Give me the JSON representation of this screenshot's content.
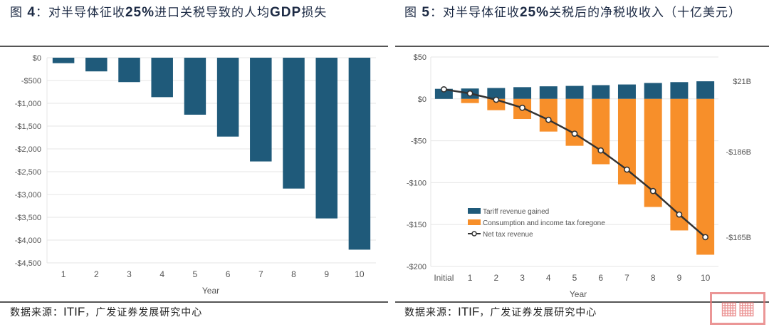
{
  "figure4": {
    "title_prefix": "图 ",
    "title_num": "4",
    "title_text": "：对半导体征收",
    "title_pct": "25%",
    "title_text2": "进口关税导致的人均",
    "title_gdp": "GDP",
    "title_text3": "损失",
    "source_label": "数据来源：",
    "source_en": "ITIF",
    "source_rest": "，广发证券发展研究中心"
  },
  "figure5": {
    "title_prefix": "图 ",
    "title_num": "5",
    "title_text": "：对半导体征收",
    "title_pct": "25%",
    "title_text2": "关税后的净税收收入（十亿美元）",
    "source_label": "数据来源：",
    "source_en": "ITIF",
    "source_rest": "，广发证券发展研究中心"
  },
  "colors": {
    "blue": "#1f5a7a",
    "orange": "#f78f2a",
    "line": "#333333",
    "grid": "#e6e6e6"
  },
  "watermark": "",
  "chart_data": [
    {
      "type": "bar",
      "title": "",
      "xlabel": "Year",
      "ylabel": "",
      "categories": [
        "1",
        "2",
        "3",
        "4",
        "5",
        "6",
        "7",
        "8",
        "9",
        "10"
      ],
      "values": [
        -120,
        -300,
        -535,
        -865,
        -1250,
        -1730,
        -2275,
        -2870,
        -3525,
        -4210
      ],
      "ylim": [
        -4500,
        0
      ],
      "yticks": [
        0,
        -500,
        -1000,
        -1500,
        -2000,
        -2500,
        -3000,
        -3500,
        -4000,
        -4500
      ],
      "ytick_labels": [
        "$0",
        "-$500",
        "-$1,000",
        "-$1,500",
        "-$2,000",
        "-$2,500",
        "-$3,000",
        "-$3,500",
        "-$4,000",
        "-$4,500"
      ],
      "grid": true
    },
    {
      "type": "bar",
      "title": "",
      "xlabel": "Year",
      "ylabel": "",
      "categories": [
        "Initial",
        "1",
        "2",
        "3",
        "4",
        "5",
        "6",
        "7",
        "8",
        "9",
        "10"
      ],
      "series": [
        {
          "name": "Tariff revenue gained",
          "kind": "bar",
          "values": [
            12,
            12.4,
            13,
            14,
            15,
            15.5,
            16.4,
            17.2,
            19,
            20,
            21
          ]
        },
        {
          "name": "Consumption and income tax foregone",
          "kind": "bar",
          "values": [
            0,
            -5,
            -13.5,
            -24,
            -39,
            -56,
            -78,
            -102,
            -129,
            -157,
            -186
          ]
        },
        {
          "name": "Net tax revenue",
          "kind": "line",
          "values": [
            11.4,
            6.5,
            -1,
            -10.6,
            -25,
            -41.5,
            -61.5,
            -84.4,
            -110,
            -138,
            -165
          ]
        }
      ],
      "ylim": [
        -200,
        50
      ],
      "yticks": [
        50,
        0,
        -50,
        -100,
        -150,
        -200
      ],
      "ytick_labels": [
        "$50",
        "$0",
        "-$50",
        "-$100",
        "-$150",
        "-$200"
      ],
      "annotations": [
        "$21B",
        "-$186B",
        "-$165B"
      ],
      "legend": "bottom-left",
      "grid": true
    }
  ]
}
